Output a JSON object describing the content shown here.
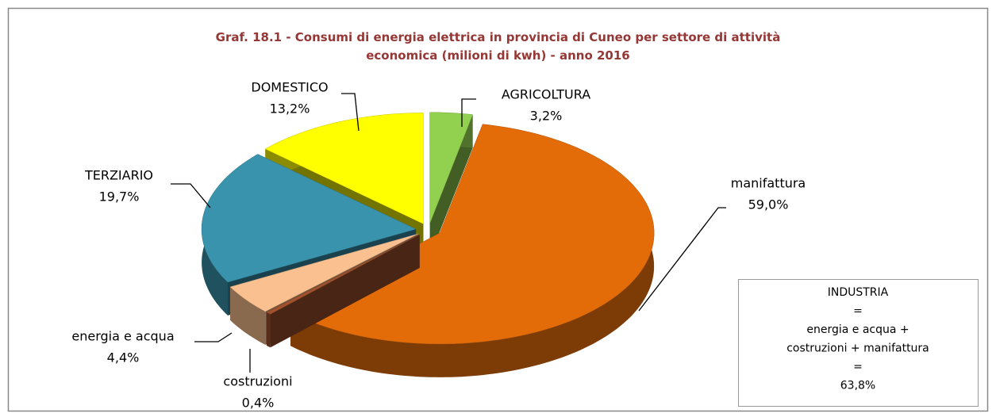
{
  "chart_data": {
    "type": "pie",
    "title": "Graf. 18.1 - Consumi di energia elettrica in provincia di Cuneo per settore di attività economica (milioni di kwh) - anno 2016",
    "categories": [
      "AGRICOLTURA",
      "manifattura",
      "costruzioni",
      "energia e acqua",
      "TERZIARIO",
      "DOMESTICO"
    ],
    "values": [
      3.2,
      59.0,
      0.4,
      4.4,
      19.7,
      13.2
    ],
    "value_labels": [
      "3,2%",
      "59,0%",
      "0,4%",
      "4,4%",
      "19,7%",
      "13,2%"
    ],
    "colors": [
      "#92d050",
      "#e36c09",
      "#a0522d",
      "#fac090",
      "#3a93ad",
      "#ffff00"
    ],
    "annotation": [
      "INDUSTRIA",
      "=",
      "energia e acqua +",
      "costruzioni + manifattura",
      "=",
      "63,8%"
    ]
  }
}
